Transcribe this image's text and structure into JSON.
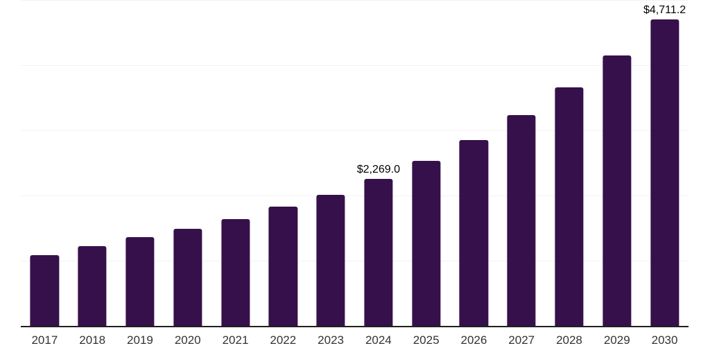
{
  "chart_data": {
    "type": "bar",
    "title": "",
    "xlabel": "",
    "ylabel": "",
    "categories": [
      "2017",
      "2018",
      "2019",
      "2020",
      "2021",
      "2022",
      "2023",
      "2024",
      "2025",
      "2026",
      "2027",
      "2028",
      "2029",
      "2030"
    ],
    "values": [
      1100,
      1237,
      1375,
      1500,
      1652,
      1837,
      2025,
      2269.0,
      2545,
      2861,
      3241,
      3668,
      4158,
      4711.2
    ],
    "data_labels": [
      {
        "category": "2024",
        "text": "$2,269.0"
      },
      {
        "category": "2030",
        "text": "$4,711.2"
      }
    ],
    "ylim": [
      0,
      5000
    ],
    "gridline_values": [
      1000,
      2000,
      3000,
      4000,
      5000
    ],
    "grid": "horizontal",
    "legend": "none",
    "y_axis_labels_visible": false,
    "colors": {
      "bar": "#36104B",
      "gridline": "#F2F2F2",
      "axis_line": "#1F1F1F",
      "x_tick_label": "#333333",
      "value_label": "#000000",
      "background": "#FFFFFF"
    }
  }
}
